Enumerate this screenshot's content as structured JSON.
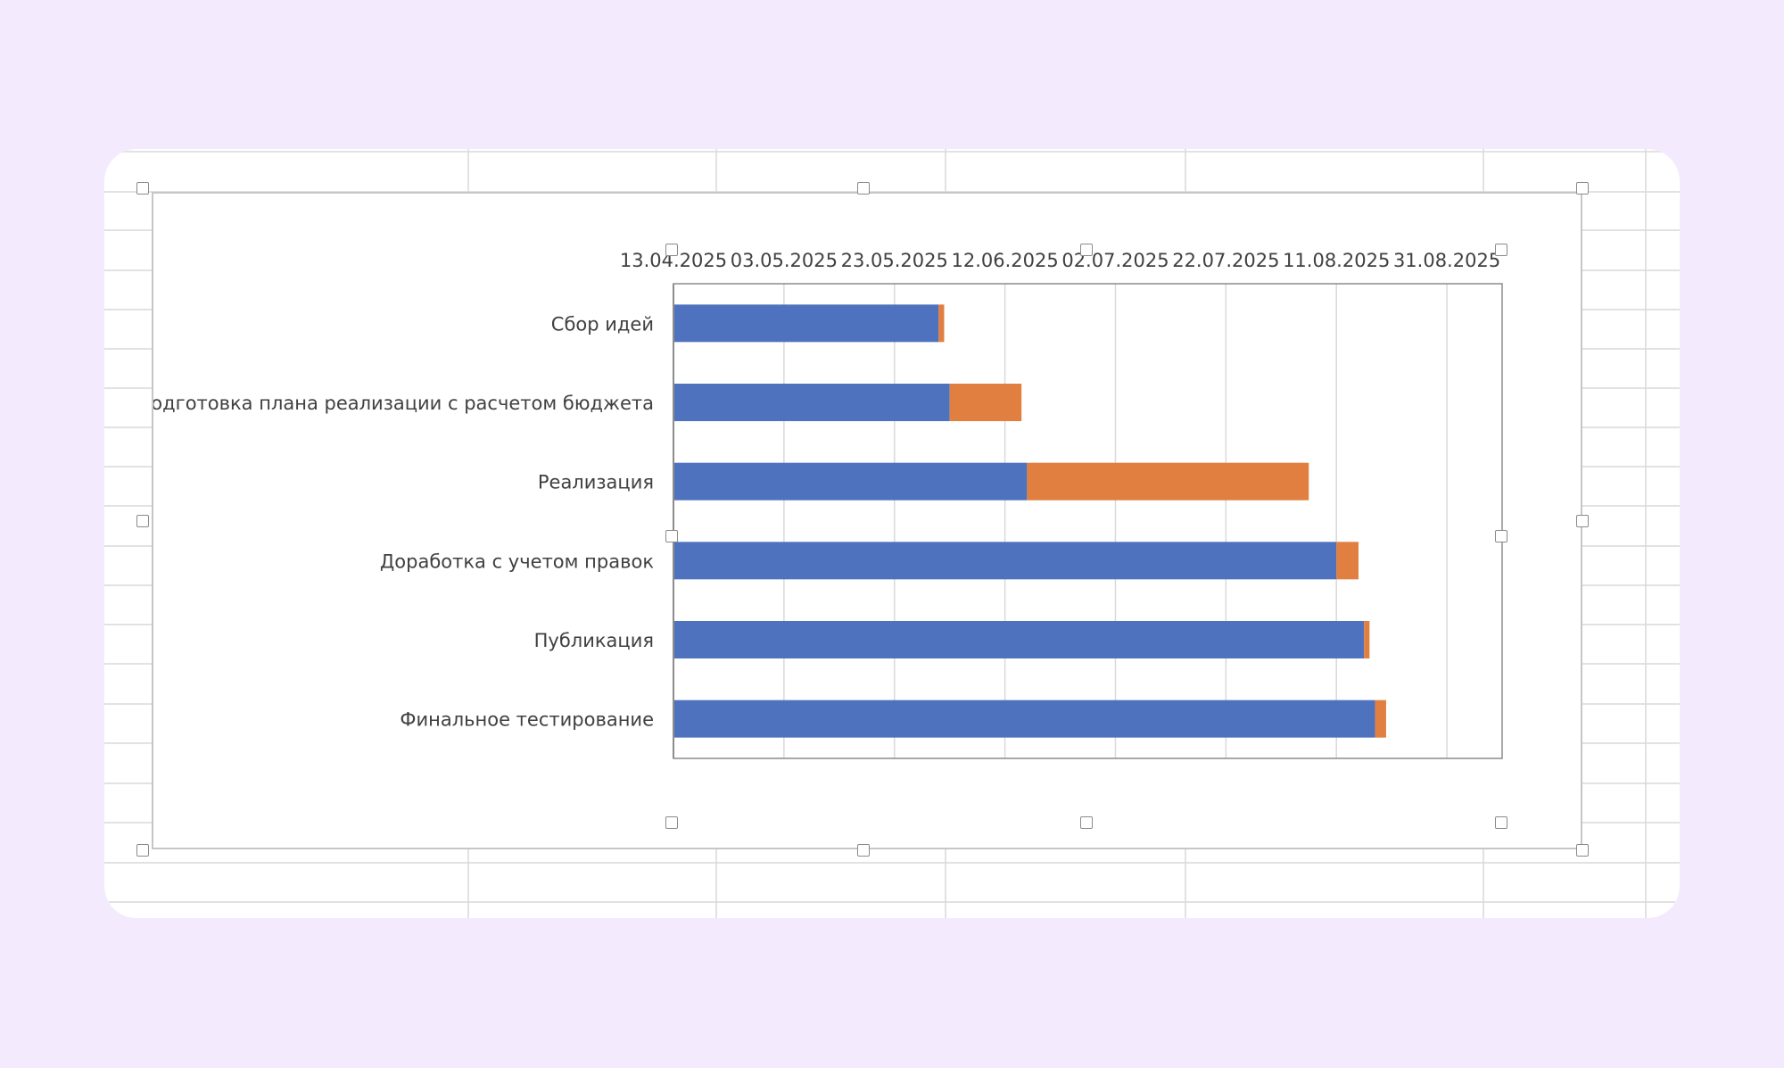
{
  "spreadsheet": {
    "gridline_color": "#d9d9d9",
    "background": "#ffffff"
  },
  "chart_data": {
    "type": "bar",
    "orientation": "horizontal",
    "stacked": true,
    "title": "",
    "xlabel": "",
    "ylabel": "",
    "x_axis_position": "top",
    "x_axis_type": "date",
    "xlim": [
      "13.04.2025",
      "10.09.2025"
    ],
    "x_ticks": [
      "13.04.2025",
      "03.05.2025",
      "23.05.2025",
      "12.06.2025",
      "02.07.2025",
      "22.07.2025",
      "11.08.2025",
      "31.08.2025"
    ],
    "grid": true,
    "legend": "none",
    "categories": [
      "Сбор идей",
      "Подготовка плана реализации с расчетом бюджета",
      "Реализация",
      "Доработка с учетом правок",
      "Публикация",
      "Финальное тестирование"
    ],
    "series": [
      {
        "color": "#4f72bf",
        "values": [
          "31.05.2025",
          "02.06.2025",
          "16.06.2025",
          "11.08.2025",
          "16.08.2025",
          "18.08.2025"
        ]
      },
      {
        "color": "#e07f3f",
        "values": [
          1,
          13,
          51,
          4,
          1,
          2
        ]
      }
    ]
  }
}
